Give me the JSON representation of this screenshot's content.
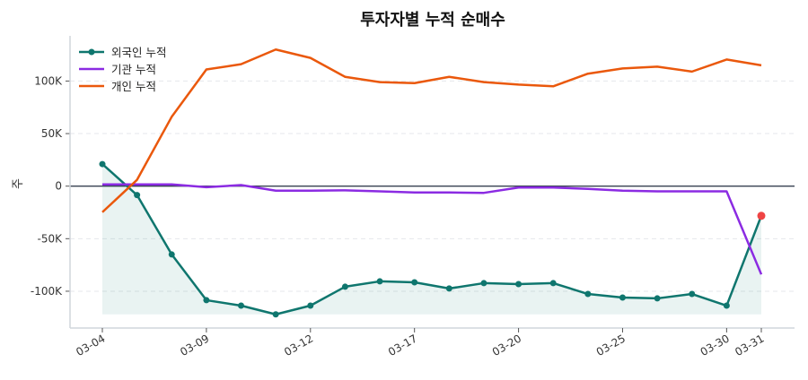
{
  "chart_data": {
    "type": "line",
    "title": "투자자별 누적 순매수",
    "ylabel": "주",
    "xlabel": "",
    "ylim": [
      -135000,
      143000
    ],
    "yticks": [
      -100000,
      -50000,
      0,
      50000,
      100000
    ],
    "ytick_labels": [
      "-100K",
      "-50K",
      "0",
      "50K",
      "100K"
    ],
    "grid": true,
    "legend": "top-left",
    "categories": [
      "03-04",
      "03-05",
      "03-06",
      "03-09",
      "03-10",
      "03-11",
      "03-12",
      "03-13",
      "03-16",
      "03-17",
      "03-18",
      "03-19",
      "03-20",
      "03-23",
      "03-24",
      "03-25",
      "03-26",
      "03-27",
      "03-30",
      "03-31"
    ],
    "xtick_labels": [
      "03-04",
      "03-09",
      "03-12",
      "03-17",
      "03-20",
      "03-25",
      "03-30",
      "03-31"
    ],
    "series": [
      {
        "name": "외국인 누적",
        "color": "#0f766e",
        "markers": true,
        "fill": true,
        "values": [
          21000,
          -8500,
          -65000,
          -108500,
          -113700,
          -122000,
          -113700,
          -95700,
          -90600,
          -91500,
          -97400,
          -92300,
          -93200,
          -92300,
          -102600,
          -106000,
          -106800,
          -102600,
          -113700,
          -28200
        ]
      },
      {
        "name": "기관 누적",
        "color": "#8b2be2",
        "markers": false,
        "values": [
          1700,
          1700,
          1700,
          -1000,
          1000,
          -4300,
          -4300,
          -4000,
          -5000,
          -6000,
          -6000,
          -6400,
          -1300,
          -1300,
          -2600,
          -4300,
          -5000,
          -5000,
          -5000,
          -84000
        ]
      },
      {
        "name": "개인 누적",
        "color": "#ea580c",
        "markers": false,
        "values": [
          -24800,
          6000,
          66000,
          111000,
          116000,
          130000,
          122000,
          104000,
          99000,
          98000,
          104000,
          99000,
          96600,
          95000,
          107000,
          112000,
          113700,
          109000,
          120500,
          115000
        ]
      }
    ],
    "highlight_last_point_color": "#ef4444"
  }
}
